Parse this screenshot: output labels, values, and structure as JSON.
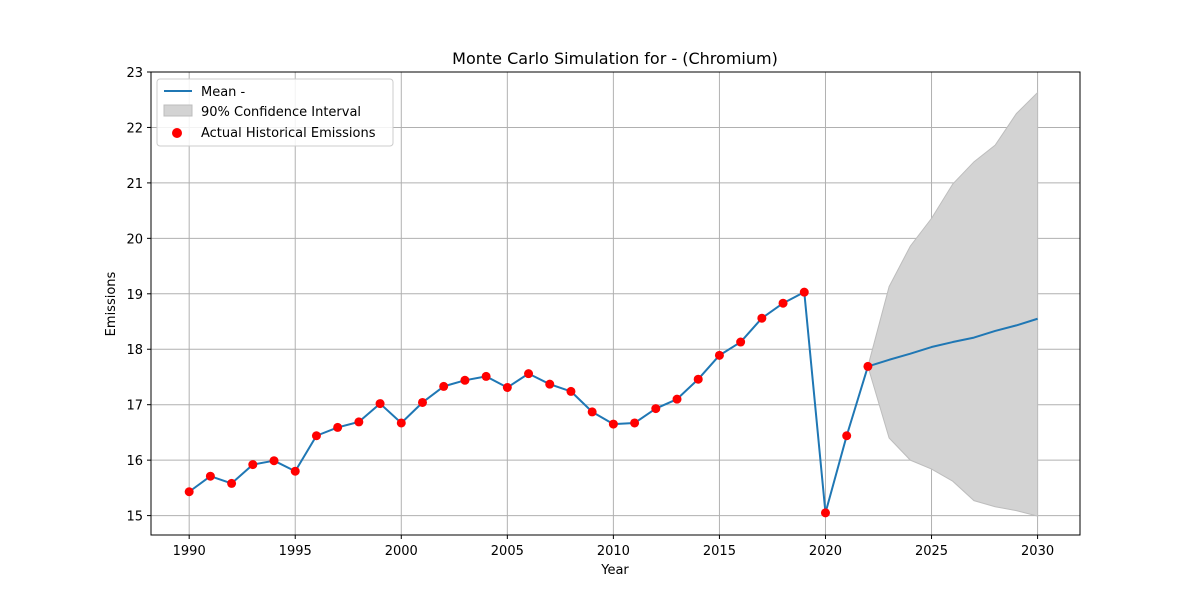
{
  "chart_data": {
    "type": "line",
    "title": "Monte Carlo Simulation for - (Chromium)",
    "xlabel": "Year",
    "ylabel": "Emissions",
    "xlim": [
      1988.2,
      2032.0
    ],
    "ylim": [
      14.65,
      23.0
    ],
    "xticks": [
      1990,
      1995,
      2000,
      2005,
      2010,
      2015,
      2020,
      2025,
      2030
    ],
    "yticks": [
      15,
      16,
      17,
      18,
      19,
      20,
      21,
      22,
      23
    ],
    "grid": true,
    "legend_position": "top-left",
    "colors": {
      "mean_line": "#1f77b4",
      "confidence_fill": "#d3d3d3",
      "confidence_edge": "#bdbdbd",
      "historical_points": "#ff0000",
      "grid": "#b0b0b0"
    },
    "series": [
      {
        "name": "Mean -",
        "kind": "line",
        "x": [
          1990,
          1991,
          1992,
          1993,
          1994,
          1995,
          1996,
          1997,
          1998,
          1999,
          2000,
          2001,
          2002,
          2003,
          2004,
          2005,
          2006,
          2007,
          2008,
          2009,
          2010,
          2011,
          2012,
          2013,
          2014,
          2015,
          2016,
          2017,
          2018,
          2019,
          2020,
          2021,
          2022,
          2023,
          2024,
          2025,
          2026,
          2027,
          2028,
          2029,
          2030
        ],
        "y": [
          15.43,
          15.71,
          15.58,
          15.92,
          15.99,
          15.8,
          16.44,
          16.59,
          16.69,
          17.02,
          16.67,
          17.04,
          17.33,
          17.44,
          17.51,
          17.31,
          17.56,
          17.37,
          17.24,
          16.87,
          16.65,
          16.67,
          16.93,
          17.1,
          17.46,
          17.89,
          18.13,
          18.56,
          18.83,
          19.03,
          15.05,
          16.44,
          17.69,
          17.81,
          17.92,
          18.04,
          18.13,
          18.21,
          18.33,
          18.43,
          18.55
        ]
      },
      {
        "name": "90% Confidence Interval",
        "kind": "band",
        "x": [
          2022,
          2023,
          2024,
          2025,
          2026,
          2027,
          2028,
          2029,
          2030
        ],
        "lower": [
          17.69,
          16.4,
          16.0,
          15.84,
          15.62,
          15.27,
          15.16,
          15.09,
          14.99
        ],
        "upper": [
          17.69,
          19.13,
          19.86,
          20.36,
          20.98,
          21.38,
          21.68,
          22.25,
          22.63
        ]
      },
      {
        "name": "Actual Historical Emissions",
        "kind": "scatter",
        "x": [
          1990,
          1991,
          1992,
          1993,
          1994,
          1995,
          1996,
          1997,
          1998,
          1999,
          2000,
          2001,
          2002,
          2003,
          2004,
          2005,
          2006,
          2007,
          2008,
          2009,
          2010,
          2011,
          2012,
          2013,
          2014,
          2015,
          2016,
          2017,
          2018,
          2019,
          2020,
          2021,
          2022
        ],
        "y": [
          15.43,
          15.71,
          15.58,
          15.92,
          15.99,
          15.8,
          16.44,
          16.59,
          16.69,
          17.02,
          16.67,
          17.04,
          17.33,
          17.44,
          17.51,
          17.31,
          17.56,
          17.37,
          17.24,
          16.87,
          16.65,
          16.67,
          16.93,
          17.1,
          17.46,
          17.89,
          18.13,
          18.56,
          18.83,
          19.03,
          15.05,
          16.44,
          17.69
        ]
      }
    ]
  }
}
